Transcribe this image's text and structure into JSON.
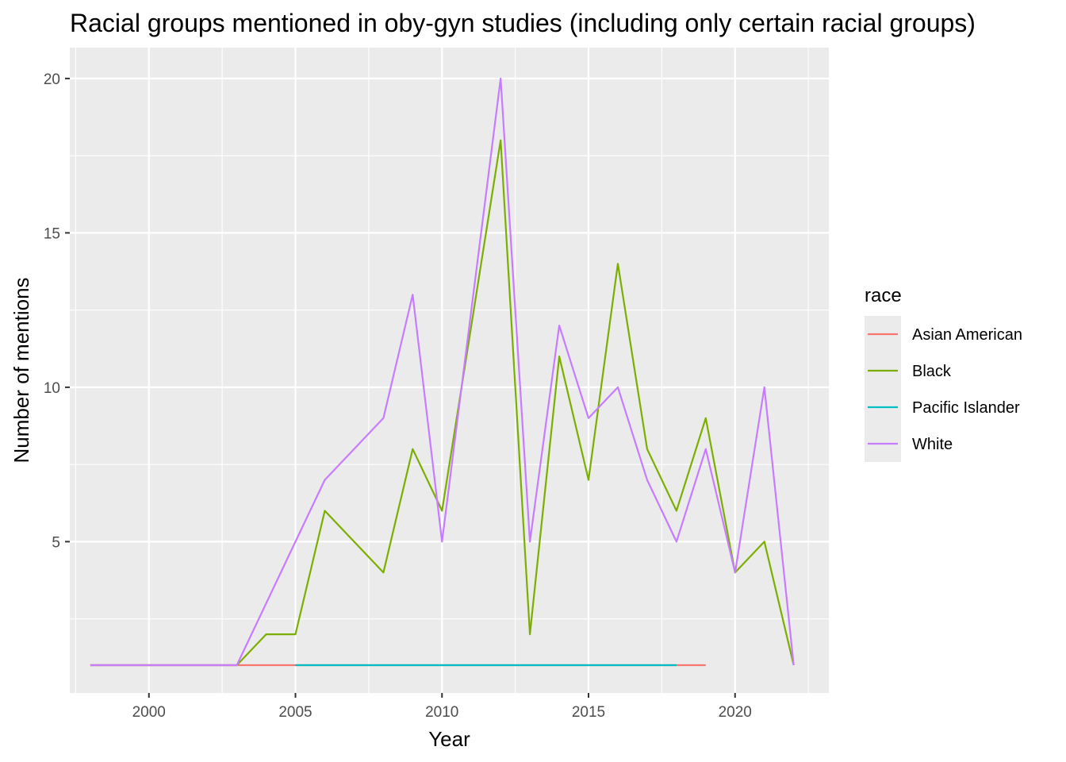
{
  "chart_data": {
    "type": "line",
    "title": "Racial groups mentioned in oby-gyn studies (including only certain racial groups)",
    "xlabel": "Year",
    "ylabel": "Number of mentions",
    "xlim": [
      1997.3,
      2023.2
    ],
    "ylim": [
      0.1,
      21.0
    ],
    "x_ticks": [
      2000,
      2005,
      2010,
      2015,
      2020
    ],
    "y_ticks": [
      5,
      10,
      15,
      20
    ],
    "grid": true,
    "legend": {
      "title": "race",
      "position": "right"
    },
    "series": [
      {
        "name": "Asian American",
        "color": "#F8766D",
        "points": [
          [
            1998,
            1
          ],
          [
            2003,
            1
          ],
          [
            2005,
            1
          ],
          [
            2018,
            1
          ],
          [
            2019,
            1
          ]
        ]
      },
      {
        "name": "Black",
        "color": "#7CAE00",
        "points": [
          [
            1998,
            1
          ],
          [
            2003,
            1
          ],
          [
            2004,
            2
          ],
          [
            2005,
            2
          ],
          [
            2006,
            6
          ],
          [
            2008,
            4
          ],
          [
            2009,
            8
          ],
          [
            2010,
            6
          ],
          [
            2012,
            18
          ],
          [
            2013,
            2
          ],
          [
            2014,
            11
          ],
          [
            2015,
            7
          ],
          [
            2016,
            14
          ],
          [
            2017,
            8
          ],
          [
            2018,
            6
          ],
          [
            2019,
            9
          ],
          [
            2020,
            4
          ],
          [
            2021,
            5
          ],
          [
            2022,
            1
          ]
        ]
      },
      {
        "name": "Pacific Islander",
        "color": "#00BFC4",
        "points": [
          [
            2005,
            1
          ],
          [
            2018,
            1
          ]
        ]
      },
      {
        "name": "White",
        "color": "#C77CFF",
        "points": [
          [
            1998,
            1
          ],
          [
            2003,
            1
          ],
          [
            2005,
            5
          ],
          [
            2006,
            7
          ],
          [
            2008,
            9
          ],
          [
            2009,
            13
          ],
          [
            2010,
            5
          ],
          [
            2012,
            20
          ],
          [
            2013,
            5
          ],
          [
            2014,
            12
          ],
          [
            2015,
            9
          ],
          [
            2016,
            10
          ],
          [
            2017,
            7
          ],
          [
            2018,
            5
          ],
          [
            2019,
            8
          ],
          [
            2020,
            4
          ],
          [
            2021,
            10
          ],
          [
            2022,
            1
          ]
        ]
      }
    ]
  }
}
